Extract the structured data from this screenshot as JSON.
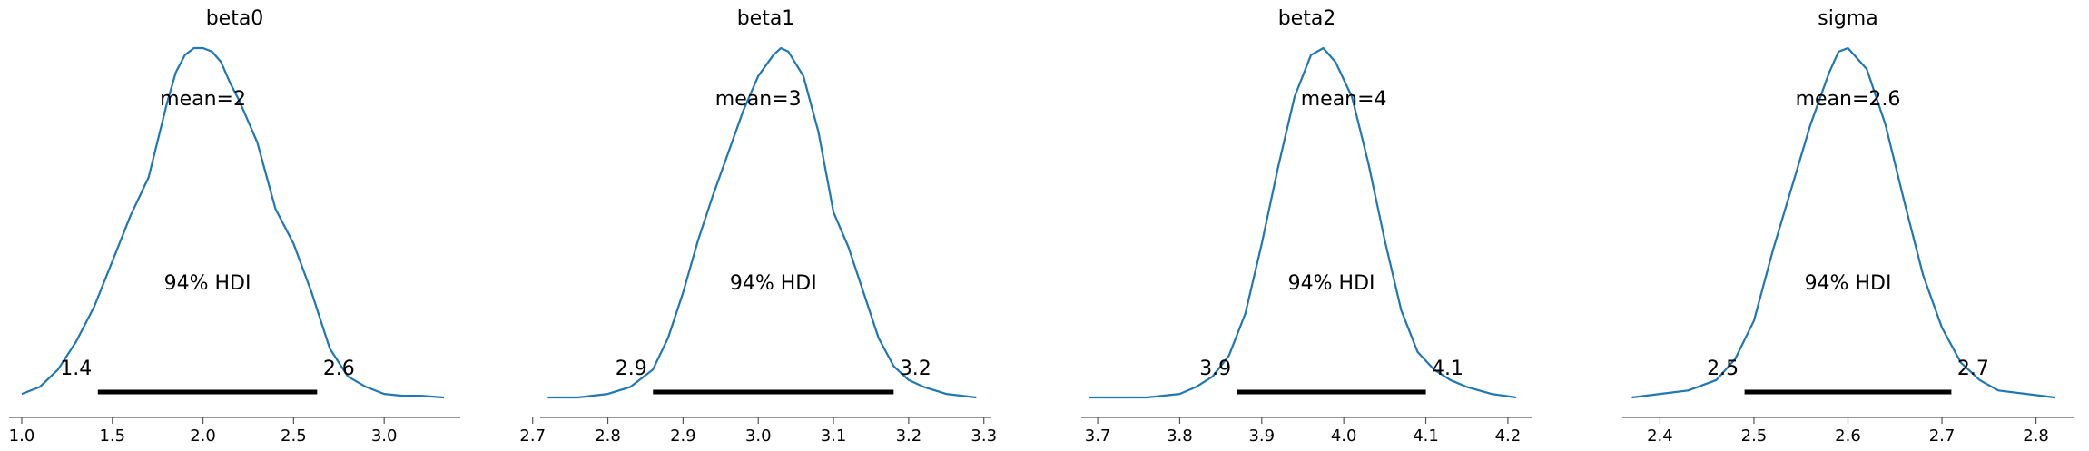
{
  "style": {
    "curve_color": "#1f77b4",
    "hdi_color": "#000000",
    "axis_color": "#555555"
  },
  "chart_data": [
    {
      "type": "line",
      "title": "beta0",
      "mean_label": "mean=2",
      "mean": 2.0,
      "hdi_label": "94% HDI",
      "hdi": [
        1.42,
        2.63
      ],
      "hdi_low_label": "1.4",
      "hdi_high_label": "2.6",
      "xlim": [
        0.93,
        3.42
      ],
      "xticks": [
        1.0,
        1.5,
        2.0,
        2.5,
        3.0
      ],
      "xtick_labels": [
        "1.0",
        "1.5",
        "2.0",
        "2.5",
        "3.0"
      ],
      "x": [
        1.0,
        1.1,
        1.2,
        1.3,
        1.4,
        1.5,
        1.6,
        1.7,
        1.8,
        1.85,
        1.9,
        1.95,
        2.0,
        2.05,
        2.1,
        2.15,
        2.2,
        2.3,
        2.4,
        2.5,
        2.6,
        2.7,
        2.8,
        2.9,
        3.0,
        3.1,
        3.2,
        3.33
      ],
      "density": [
        0.01,
        0.03,
        0.08,
        0.16,
        0.26,
        0.39,
        0.52,
        0.63,
        0.84,
        0.93,
        0.98,
        1.0,
        1.0,
        0.99,
        0.96,
        0.9,
        0.85,
        0.73,
        0.54,
        0.44,
        0.3,
        0.14,
        0.06,
        0.03,
        0.01,
        0.005,
        0.005,
        0.0
      ]
    },
    {
      "type": "line",
      "title": "beta1",
      "mean_label": "mean=3",
      "mean": 3.0,
      "hdi_label": "94% HDI",
      "hdi": [
        2.86,
        3.18
      ],
      "hdi_low_label": "2.9",
      "hdi_high_label": "3.2",
      "xlim": [
        2.71,
        3.31
      ],
      "xticks": [
        2.7,
        2.8,
        2.9,
        3.0,
        3.1,
        3.2,
        3.3
      ],
      "xtick_labels": [
        "2.7",
        "2.8",
        "2.9",
        "3.0",
        "3.1",
        "3.2",
        "3.3"
      ],
      "x": [
        2.72,
        2.76,
        2.8,
        2.83,
        2.86,
        2.88,
        2.9,
        2.92,
        2.94,
        2.96,
        2.98,
        3.0,
        3.02,
        3.03,
        3.04,
        3.06,
        3.08,
        3.1,
        3.12,
        3.14,
        3.16,
        3.18,
        3.2,
        3.22,
        3.25,
        3.29
      ],
      "density": [
        0.0,
        0.0,
        0.01,
        0.03,
        0.08,
        0.17,
        0.3,
        0.45,
        0.58,
        0.7,
        0.82,
        0.92,
        0.98,
        1.0,
        0.99,
        0.92,
        0.76,
        0.53,
        0.43,
        0.3,
        0.17,
        0.09,
        0.05,
        0.03,
        0.01,
        0.0
      ]
    },
    {
      "type": "line",
      "title": "beta2",
      "mean_label": "mean=4",
      "mean": 4.0,
      "hdi_label": "94% HDI",
      "hdi": [
        3.87,
        4.1
      ],
      "hdi_low_label": "3.9",
      "hdi_high_label": "4.1",
      "xlim": [
        3.68,
        4.23
      ],
      "xticks": [
        3.7,
        3.8,
        3.9,
        4.0,
        4.1,
        4.2
      ],
      "xtick_labels": [
        "3.7",
        "3.8",
        "3.9",
        "4.0",
        "4.1",
        "4.2"
      ],
      "x": [
        3.69,
        3.72,
        3.76,
        3.8,
        3.82,
        3.84,
        3.86,
        3.88,
        3.9,
        3.92,
        3.94,
        3.96,
        3.975,
        3.99,
        4.01,
        4.03,
        4.05,
        4.07,
        4.09,
        4.11,
        4.13,
        4.15,
        4.18,
        4.21
      ],
      "density": [
        0.0,
        0.0,
        0.0,
        0.01,
        0.03,
        0.06,
        0.12,
        0.24,
        0.44,
        0.66,
        0.86,
        0.98,
        1.0,
        0.96,
        0.86,
        0.67,
        0.45,
        0.25,
        0.13,
        0.08,
        0.05,
        0.03,
        0.01,
        0.0
      ]
    },
    {
      "type": "line",
      "title": "sigma",
      "mean_label": "mean=2.6",
      "mean": 2.6,
      "hdi_label": "94% HDI",
      "hdi": [
        2.49,
        2.71
      ],
      "hdi_low_label": "2.5",
      "hdi_high_label": "2.7",
      "xlim": [
        2.36,
        2.84
      ],
      "xticks": [
        2.4,
        2.5,
        2.6,
        2.7,
        2.8
      ],
      "xtick_labels": [
        "2.4",
        "2.5",
        "2.6",
        "2.7",
        "2.8"
      ],
      "x": [
        2.37,
        2.4,
        2.43,
        2.46,
        2.48,
        2.5,
        2.52,
        2.54,
        2.56,
        2.58,
        2.59,
        2.6,
        2.62,
        2.64,
        2.66,
        2.68,
        2.7,
        2.72,
        2.74,
        2.76,
        2.79,
        2.82
      ],
      "density": [
        0.0,
        0.01,
        0.02,
        0.05,
        0.11,
        0.22,
        0.42,
        0.6,
        0.78,
        0.93,
        0.99,
        1.0,
        0.94,
        0.78,
        0.56,
        0.35,
        0.2,
        0.1,
        0.05,
        0.02,
        0.01,
        0.0
      ]
    }
  ]
}
